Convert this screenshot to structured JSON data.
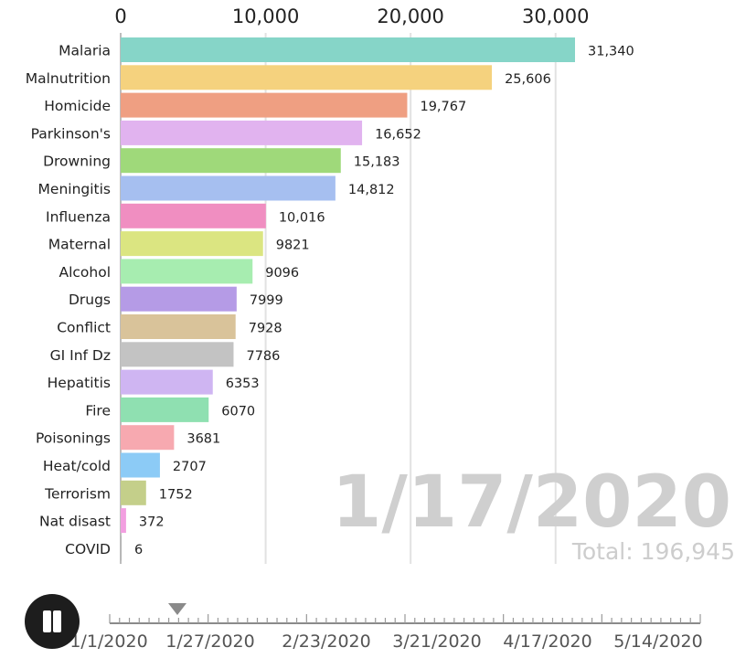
{
  "chart_data": {
    "type": "bar",
    "orientation": "horizontal",
    "categories": [
      "Malaria",
      "Malnutrition",
      "Homicide",
      "Parkinson's",
      "Drowning",
      "Meningitis",
      "Influenza",
      "Maternal",
      "Alcohol",
      "Drugs",
      "Conflict",
      "GI Inf Dz",
      "Hepatitis",
      "Fire",
      "Poisonings",
      "Heat/cold",
      "Terrorism",
      "Nat disast",
      "COVID"
    ],
    "values": [
      31340,
      25606,
      19767,
      16652,
      15183,
      14812,
      10016,
      9821,
      9096,
      7999,
      7928,
      7786,
      6353,
      6070,
      3681,
      2707,
      1752,
      372,
      6
    ],
    "value_labels": [
      "31,340",
      "25,606",
      "19,767",
      "16,652",
      "15,183",
      "14,812",
      "10,016",
      "9821",
      "9096",
      "7999",
      "7928",
      "7786",
      "6353",
      "6070",
      "3681",
      "2707",
      "1752",
      "372",
      "6"
    ],
    "colors": [
      "#86d5c8",
      "#f5d27e",
      "#ef9f82",
      "#e1b3ef",
      "#9fd97a",
      "#a6bff0",
      "#f08ec1",
      "#dbe581",
      "#a7edb0",
      "#b59be6",
      "#d9c39a",
      "#c3c3c3",
      "#cfb5f2",
      "#8fe0b1",
      "#f7a9b0",
      "#8ccbf6",
      "#c4cf8a",
      "#f29fe0",
      "#b0b0b0"
    ],
    "xticks": [
      "0",
      "10,000",
      "20,000",
      "30,000"
    ],
    "xtick_values": [
      0,
      10000,
      20000,
      30000
    ],
    "xlim": [
      0,
      31340
    ],
    "grid": true,
    "date": "1/17/2020",
    "total": "Total: 196,945"
  },
  "playback": {
    "state": "playing",
    "pause_icon": "pause-icon",
    "timeline_labels": [
      "1/1/2020",
      "1/27/2020",
      "2/23/2020",
      "3/21/2020",
      "4/17/2020",
      "5/14/2020"
    ],
    "current_date": "1/17/2020",
    "progress": 0.106
  }
}
